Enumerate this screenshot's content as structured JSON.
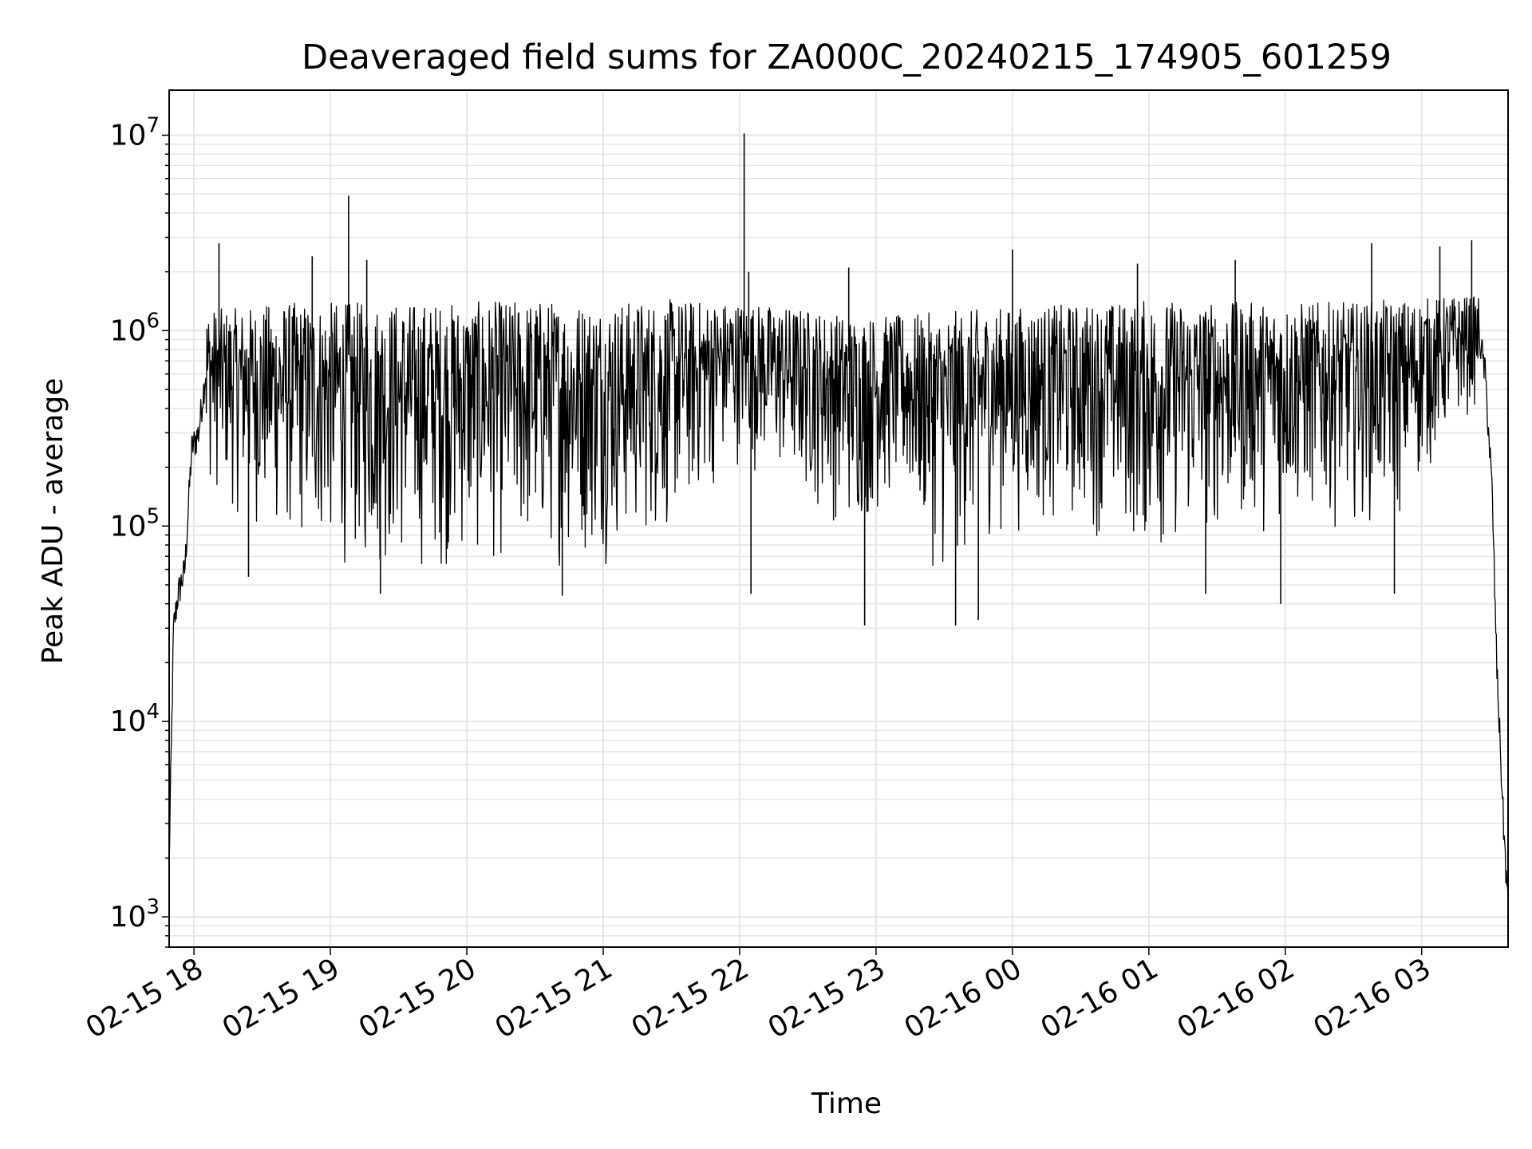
{
  "chart_data": {
    "type": "line",
    "title": "Deaveraged field sums for ZA000C_20240215_174905_601259",
    "xlabel": "Time",
    "ylabel": "Peak ADU - average",
    "yscale": "log",
    "ylim": [
      700,
      17000000
    ],
    "xlim": [
      "2024-02-15T17:49:05",
      "2024-02-16T03:38:00"
    ],
    "x_ticks": [
      {
        "value": "2024-02-15T18:00",
        "label": "02-15 18"
      },
      {
        "value": "2024-02-15T19:00",
        "label": "02-15 19"
      },
      {
        "value": "2024-02-15T20:00",
        "label": "02-15 20"
      },
      {
        "value": "2024-02-15T21:00",
        "label": "02-15 21"
      },
      {
        "value": "2024-02-15T22:00",
        "label": "02-15 22"
      },
      {
        "value": "2024-02-15T23:00",
        "label": "02-15 23"
      },
      {
        "value": "2024-02-16T00:00",
        "label": "02-16 00"
      },
      {
        "value": "2024-02-16T01:00",
        "label": "02-16 01"
      },
      {
        "value": "2024-02-16T02:00",
        "label": "02-16 02"
      },
      {
        "value": "2024-02-16T03:00",
        "label": "02-16 03"
      }
    ],
    "y_ticks": [
      {
        "value": 1000,
        "base": "10",
        "exp": "3"
      },
      {
        "value": 10000,
        "base": "10",
        "exp": "4"
      },
      {
        "value": 100000,
        "base": "10",
        "exp": "5"
      },
      {
        "value": 1000000,
        "base": "10",
        "exp": "6"
      },
      {
        "value": 10000000,
        "base": "10",
        "exp": "7"
      }
    ],
    "grid": true,
    "line_color": "#000000",
    "grid_color": "#e6e6e6",
    "series": [
      {
        "x": [
          "2024-02-15T17:49",
          "2024-02-15T17:51",
          "2024-02-15T17:53",
          "2024-02-15T17:56",
          "2024-02-15T17:59",
          "2024-02-15T18:02",
          "2024-02-15T18:05",
          "2024-02-15T18:07",
          "2024-02-15T18:09",
          "2024-02-15T18:12",
          "2024-02-15T18:15",
          "2024-02-15T18:20",
          "2024-02-15T18:30",
          "2024-02-15T18:40",
          "2024-02-15T18:55",
          "2024-02-15T19:08",
          "2024-02-15T19:20",
          "2024-02-15T19:40",
          "2024-02-15T20:00",
          "2024-02-15T20:30",
          "2024-02-15T21:00",
          "2024-02-15T21:30",
          "2024-02-15T21:55",
          "2024-02-15T22:02",
          "2024-02-15T22:15",
          "2024-02-15T22:40",
          "2024-02-15T23:00",
          "2024-02-15T23:30",
          "2024-02-16T00:00",
          "2024-02-16T00:30",
          "2024-02-16T01:00",
          "2024-02-16T01:30",
          "2024-02-16T02:00",
          "2024-02-16T02:30",
          "2024-02-16T03:00",
          "2024-02-16T03:15",
          "2024-02-16T03:24",
          "2024-02-16T03:28",
          "2024-02-16T03:31",
          "2024-02-16T03:33",
          "2024-02-16T03:36",
          "2024-02-16T03:38"
        ],
        "y": [
          1700,
          30000,
          45000,
          60000,
          250000,
          300000,
          600000,
          1200000,
          1800000,
          1100000,
          400000,
          700000,
          300000,
          200000,
          400000,
          150000,
          120000,
          100000,
          200000,
          300000,
          450000,
          600000,
          700000,
          800000,
          600000,
          400000,
          700000,
          400000,
          700000,
          600000,
          700000,
          600000,
          700000,
          800000,
          900000,
          1000000,
          1200000,
          600000,
          150000,
          20000,
          3000,
          1100
        ]
      }
    ],
    "envelope": {
      "x": [
        "2024-02-15T18:05",
        "2024-02-15T18:20",
        "2024-02-15T18:40",
        "2024-02-15T19:00",
        "2024-02-15T19:15",
        "2024-02-15T19:30",
        "2024-02-15T20:00",
        "2024-02-15T20:30",
        "2024-02-15T21:00",
        "2024-02-15T21:30",
        "2024-02-15T22:00",
        "2024-02-15T22:30",
        "2024-02-15T22:50",
        "2024-02-15T23:10",
        "2024-02-15T23:30",
        "2024-02-15T23:50",
        "2024-02-16T00:15",
        "2024-02-16T00:45",
        "2024-02-16T01:00",
        "2024-02-16T01:30",
        "2024-02-16T02:00",
        "2024-02-16T02:30",
        "2024-02-16T02:50",
        "2024-02-16T03:15",
        "2024-02-16T03:25"
      ],
      "high": [
        1300000,
        1300000,
        1400000,
        1400000,
        1400000,
        1400000,
        1400000,
        1450000,
        1400000,
        1450000,
        1400000,
        1300000,
        1200000,
        1200000,
        1250000,
        1300000,
        1350000,
        1400000,
        1450000,
        1400000,
        1400000,
        1400000,
        1450000,
        1500000,
        1500000
      ],
      "low": [
        150000,
        100000,
        70000,
        60000,
        50000,
        50000,
        55000,
        55000,
        60000,
        80000,
        200000,
        120000,
        80000,
        120000,
        45000,
        80000,
        90000,
        80000,
        60000,
        80000,
        90000,
        100000,
        90000,
        300000,
        400000
      ]
    },
    "spikes": [
      {
        "x": "2024-02-15T18:11",
        "y": 2800000
      },
      {
        "x": "2024-02-15T18:24",
        "y": 55000
      },
      {
        "x": "2024-02-15T18:52",
        "y": 2400000
      },
      {
        "x": "2024-02-15T19:08",
        "y": 4900000
      },
      {
        "x": "2024-02-15T19:16",
        "y": 2300000
      },
      {
        "x": "2024-02-15T19:22",
        "y": 45000
      },
      {
        "x": "2024-02-15T20:42",
        "y": 44000
      },
      {
        "x": "2024-02-15T22:02",
        "y": 10200000
      },
      {
        "x": "2024-02-15T22:05",
        "y": 45000
      },
      {
        "x": "2024-02-15T22:04",
        "y": 2000000
      },
      {
        "x": "2024-02-15T22:48",
        "y": 2100000
      },
      {
        "x": "2024-02-15T22:55",
        "y": 31000
      },
      {
        "x": "2024-02-15T23:35",
        "y": 31000
      },
      {
        "x": "2024-02-15T23:45",
        "y": 33000
      },
      {
        "x": "2024-02-16T00:00",
        "y": 2600000
      },
      {
        "x": "2024-02-16T00:55",
        "y": 2200000
      },
      {
        "x": "2024-02-16T01:25",
        "y": 45000
      },
      {
        "x": "2024-02-16T01:38",
        "y": 2300000
      },
      {
        "x": "2024-02-16T01:58",
        "y": 40000
      },
      {
        "x": "2024-02-16T02:38",
        "y": 2800000
      },
      {
        "x": "2024-02-16T02:48",
        "y": 45000
      },
      {
        "x": "2024-02-16T03:08",
        "y": 2700000
      },
      {
        "x": "2024-02-16T03:22",
        "y": 2900000
      }
    ]
  }
}
